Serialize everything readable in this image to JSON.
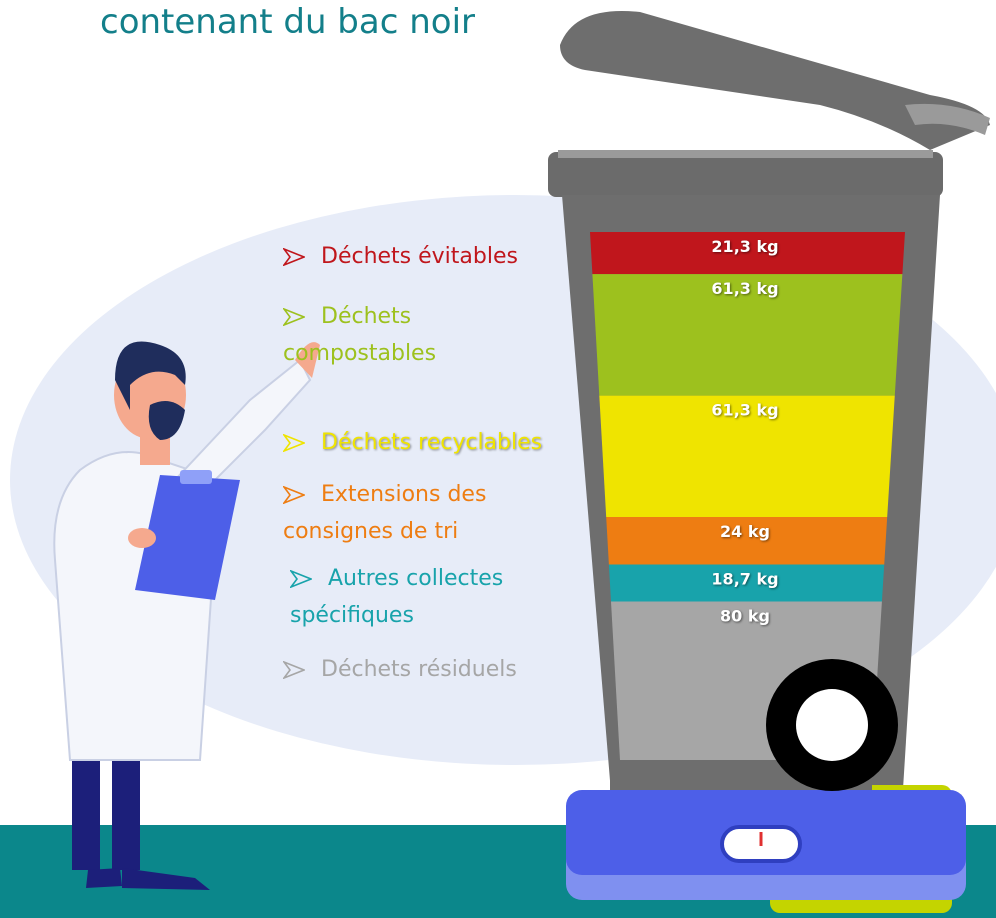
{
  "chart_data": {
    "type": "stacked-bin",
    "title": "contenant du bac noir",
    "series": [
      {
        "name": "Déchets évitables",
        "color": "#c0161c",
        "values": [
          21.3
        ],
        "value_labels": [
          "21,3 kg"
        ]
      },
      {
        "name": "Déchets compostables",
        "color": "#9dc11e",
        "values": [
          61.3
        ],
        "value_labels": [
          "61,3 kg"
        ]
      },
      {
        "name": "Déchets recyclables",
        "color": "#efe400",
        "values": [
          61.3
        ],
        "value_labels": [
          "61,3 kg"
        ]
      },
      {
        "name": "Extensions des consignes de tri",
        "color": "#ee7d12",
        "values": [
          24
        ],
        "value_labels": [
          "24 kg"
        ]
      },
      {
        "name": "Autres collectes spécifiques",
        "color": "#18a3ab",
        "values": [
          18.7
        ],
        "value_labels": [
          "18,7 kg"
        ]
      },
      {
        "name": "Déchets résiduels",
        "color": "#a6a6a6",
        "values": [
          80
        ],
        "value_labels": [
          "80 kg"
        ]
      }
    ]
  }
}
